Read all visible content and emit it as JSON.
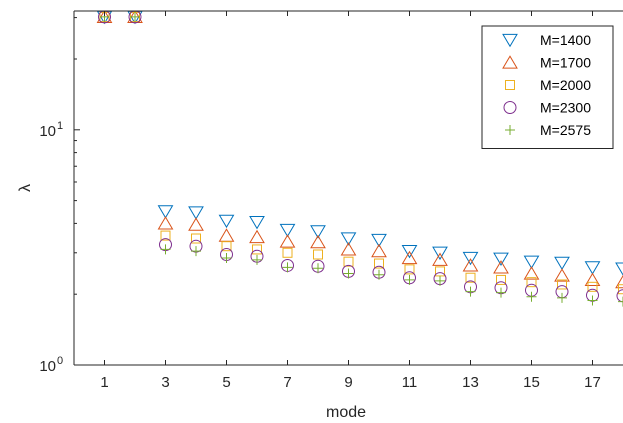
{
  "chart_data": {
    "type": "scatter",
    "xlabel": "mode",
    "ylabel": "λ",
    "yscale": "log",
    "xlim": [
      0,
      18
    ],
    "ylim": [
      1,
      32
    ],
    "x_ticks": [
      1,
      3,
      5,
      7,
      9,
      11,
      13,
      15,
      17
    ],
    "x_tick_labels": [
      "1",
      "3",
      "5",
      "7",
      "9",
      "11",
      "13",
      "15",
      "17"
    ],
    "y_ticks": [
      {
        "value": 1,
        "base": "10",
        "exp": "0"
      },
      {
        "value": 10,
        "base": "10",
        "exp": "1"
      }
    ],
    "legend_position": "top-right",
    "grid": false,
    "x": [
      1,
      2,
      3,
      4,
      5,
      6,
      7,
      8,
      9,
      10,
      11,
      12,
      13,
      14,
      15,
      16,
      17,
      18
    ],
    "series": [
      {
        "name": "M=1400",
        "marker": "triangle-down",
        "color": "#0072BD",
        "values": [
          30.2,
          30.2,
          4.5,
          4.45,
          4.1,
          4.05,
          3.75,
          3.7,
          3.45,
          3.4,
          3.05,
          3.0,
          2.85,
          2.83,
          2.75,
          2.72,
          2.6,
          2.57
        ]
      },
      {
        "name": "M=1700",
        "marker": "triangle-up",
        "color": "#D95319",
        "values": [
          30.2,
          30.2,
          4.0,
          3.95,
          3.55,
          3.5,
          3.35,
          3.33,
          3.1,
          3.05,
          2.85,
          2.8,
          2.65,
          2.6,
          2.45,
          2.4,
          2.3,
          2.25
        ]
      },
      {
        "name": "M=2000",
        "marker": "square",
        "color": "#EDB120",
        "values": [
          30.2,
          30.2,
          3.55,
          3.45,
          3.2,
          3.1,
          3.0,
          2.95,
          2.75,
          2.7,
          2.55,
          2.5,
          2.35,
          2.3,
          2.25,
          2.2,
          2.15,
          2.1
        ]
      },
      {
        "name": "M=2300",
        "marker": "circle",
        "color": "#7E2F8E",
        "values": [
          30.2,
          30.2,
          3.25,
          3.2,
          2.95,
          2.9,
          2.65,
          2.63,
          2.5,
          2.48,
          2.35,
          2.33,
          2.15,
          2.13,
          2.08,
          2.05,
          1.98,
          1.97
        ]
      },
      {
        "name": "M=2575",
        "marker": "plus",
        "color": "#77AC30",
        "values": [
          30.2,
          30.2,
          3.1,
          3.05,
          2.85,
          2.8,
          2.6,
          2.58,
          2.45,
          2.42,
          2.3,
          2.28,
          2.05,
          2.03,
          1.95,
          1.93,
          1.88,
          1.86
        ]
      }
    ]
  }
}
